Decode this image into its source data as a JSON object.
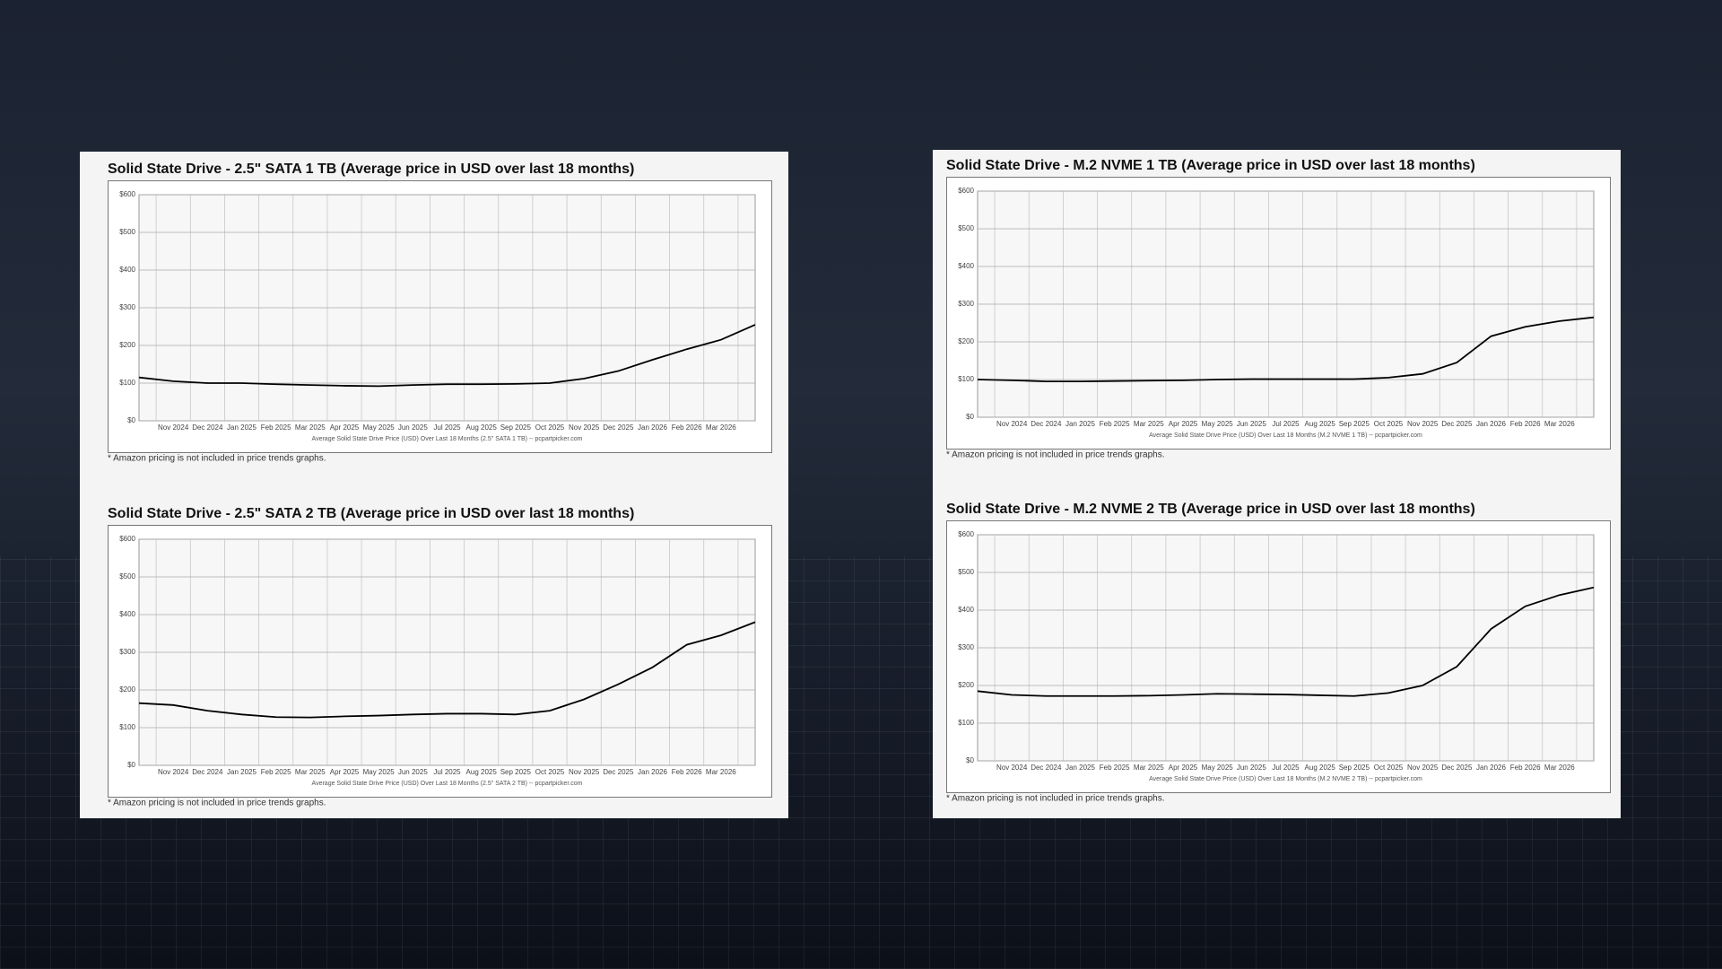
{
  "chart_data": [
    {
      "type": "line",
      "title": "Solid State Drive - 2.5\" SATA 1 TB (Average price in USD over last 18 months)",
      "xlabel": "Average Solid State Drive Price (USD) Over Last 18 Months (2.5\" SATA 1 TB) -- pcpartpicker.com",
      "note": "* Amazon pricing is not included in price trends graphs.",
      "categories": [
        null,
        "Nov 2024",
        "Dec 2024",
        "Jan 2025",
        "Feb 2025",
        "Mar 2025",
        "Apr 2025",
        "May 2025",
        "Jun 2025",
        "Jul 2025",
        "Aug 2025",
        "Sep 2025",
        "Oct 2025",
        "Nov 2025",
        "Dec 2025",
        "Jan 2026",
        "Feb 2026",
        "Mar 2026",
        null
      ],
      "values": [
        115,
        105,
        100,
        100,
        97,
        95,
        93,
        92,
        95,
        97,
        97,
        98,
        100,
        112,
        132,
        162,
        190,
        215,
        255
      ],
      "color": "#000000",
      "ylim": [
        0,
        600
      ],
      "yticks": [
        {
          "value": 0,
          "label": "$0"
        },
        {
          "value": 100,
          "label": "$100"
        },
        {
          "value": 200,
          "label": "$200"
        },
        {
          "value": 300,
          "label": "$300"
        },
        {
          "value": 400,
          "label": "$400"
        },
        {
          "value": 500,
          "label": "$500"
        },
        {
          "value": 600,
          "label": "$600"
        }
      ],
      "grid": true
    },
    {
      "type": "line",
      "title": "Solid State Drive - 2.5\" SATA 2 TB (Average price in USD over last 18 months)",
      "xlabel": "Average Solid State Drive Price (USD) Over Last 18 Months (2.5\" SATA 2 TB) -- pcpartpicker.com",
      "note": "* Amazon pricing is not included in price trends graphs.",
      "categories": [
        null,
        "Nov 2024",
        "Dec 2024",
        "Jan 2025",
        "Feb 2025",
        "Mar 2025",
        "Apr 2025",
        "May 2025",
        "Jun 2025",
        "Jul 2025",
        "Aug 2025",
        "Sep 2025",
        "Oct 2025",
        "Nov 2025",
        "Dec 2025",
        "Jan 2026",
        "Feb 2026",
        "Mar 2026",
        null
      ],
      "values": [
        165,
        160,
        145,
        135,
        128,
        127,
        130,
        132,
        135,
        137,
        137,
        135,
        145,
        175,
        215,
        260,
        320,
        345,
        380
      ],
      "color": "#000000",
      "ylim": [
        0,
        600
      ],
      "yticks": [
        {
          "value": 0,
          "label": "$0"
        },
        {
          "value": 100,
          "label": "$100"
        },
        {
          "value": 200,
          "label": "$200"
        },
        {
          "value": 300,
          "label": "$300"
        },
        {
          "value": 400,
          "label": "$400"
        },
        {
          "value": 500,
          "label": "$500"
        },
        {
          "value": 600,
          "label": "$600"
        }
      ],
      "grid": true
    },
    {
      "type": "line",
      "title": "Solid State Drive - M.2 NVME 1 TB (Average price in USD over last 18 months)",
      "xlabel": "Average Solid State Drive Price (USD) Over Last 18 Months (M.2 NVME 1 TB) -- pcpartpicker.com",
      "note": "* Amazon pricing is not included in price trends graphs.",
      "categories": [
        null,
        "Nov 2024",
        "Dec 2024",
        "Jan 2025",
        "Feb 2025",
        "Mar 2025",
        "Apr 2025",
        "May 2025",
        "Jun 2025",
        "Jul 2025",
        "Aug 2025",
        "Sep 2025",
        "Oct 2025",
        "Nov 2025",
        "Dec 2025",
        "Jan 2026",
        "Feb 2026",
        "Mar 2026",
        null
      ],
      "values": [
        100,
        98,
        95,
        95,
        96,
        97,
        98,
        100,
        101,
        101,
        101,
        101,
        105,
        115,
        145,
        215,
        240,
        255,
        265
      ],
      "color": "#000000",
      "ylim": [
        0,
        600
      ],
      "yticks": [
        {
          "value": 0,
          "label": "$0"
        },
        {
          "value": 100,
          "label": "$100"
        },
        {
          "value": 200,
          "label": "$200"
        },
        {
          "value": 300,
          "label": "$300"
        },
        {
          "value": 400,
          "label": "$400"
        },
        {
          "value": 500,
          "label": "$500"
        },
        {
          "value": 600,
          "label": "$600"
        }
      ],
      "grid": true
    },
    {
      "type": "line",
      "title": "Solid State Drive - M.2 NVME 2 TB (Average price in USD over last 18 months)",
      "xlabel": "Average Solid State Drive Price (USD) Over Last 18 Months (M.2 NVME 2 TB) -- pcpartpicker.com",
      "note": "* Amazon pricing is not included in price trends graphs.",
      "categories": [
        null,
        "Nov 2024",
        "Dec 2024",
        "Jan 2025",
        "Feb 2025",
        "Mar 2025",
        "Apr 2025",
        "May 2025",
        "Jun 2025",
        "Jul 2025",
        "Aug 2025",
        "Sep 2025",
        "Oct 2025",
        "Nov 2025",
        "Dec 2025",
        "Jan 2026",
        "Feb 2026",
        "Mar 2026",
        null
      ],
      "values": [
        185,
        175,
        172,
        172,
        172,
        173,
        175,
        178,
        177,
        176,
        174,
        172,
        180,
        200,
        250,
        350,
        410,
        440,
        460
      ],
      "color": "#000000",
      "ylim": [
        0,
        600
      ],
      "yticks": [
        {
          "value": 0,
          "label": "$0"
        },
        {
          "value": 100,
          "label": "$100"
        },
        {
          "value": 200,
          "label": "$200"
        },
        {
          "value": 300,
          "label": "$300"
        },
        {
          "value": 400,
          "label": "$400"
        },
        {
          "value": 500,
          "label": "$500"
        },
        {
          "value": 600,
          "label": "$600"
        }
      ],
      "grid": true
    }
  ]
}
